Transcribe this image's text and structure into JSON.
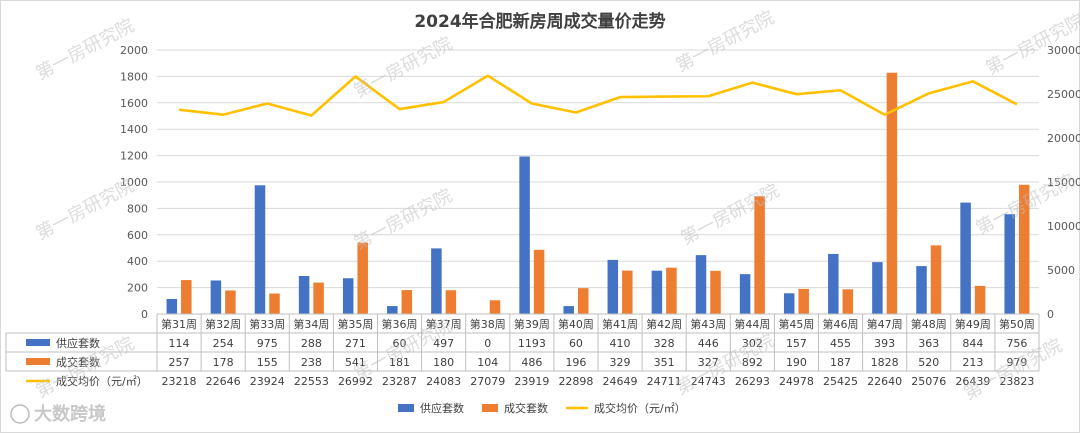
{
  "chart_data": {
    "type": "bar",
    "title": "2024年合肥新房周成交量价走势",
    "categories": [
      "第31周",
      "第32周",
      "第33周",
      "第34周",
      "第35周",
      "第36周",
      "第37周",
      "第38周",
      "第39周",
      "第40周",
      "第41周",
      "第42周",
      "第43周",
      "第44周",
      "第45周",
      "第46周",
      "第47周",
      "第48周",
      "第49周",
      "第50周"
    ],
    "series": [
      {
        "name": "供应套数",
        "type": "bar",
        "axis": "left",
        "color": "#4472c4",
        "values": [
          114,
          254,
          975,
          288,
          271,
          60,
          497,
          0,
          1193,
          60,
          410,
          328,
          446,
          302,
          157,
          455,
          393,
          363,
          844,
          756
        ]
      },
      {
        "name": "成交套数",
        "type": "bar",
        "axis": "left",
        "color": "#ed7d31",
        "values": [
          257,
          178,
          155,
          238,
          541,
          181,
          180,
          104,
          486,
          196,
          329,
          351,
          327,
          892,
          190,
          187,
          1828,
          520,
          213,
          979
        ]
      },
      {
        "name": "成交均价（元/㎡）",
        "type": "line",
        "axis": "right",
        "color": "#ffc000",
        "values": [
          23218,
          22646,
          23924,
          22553,
          26992,
          23287,
          24083,
          27079,
          23919,
          22898,
          24649,
          24711,
          24743,
          26293,
          24978,
          25425,
          22640,
          25076,
          26439,
          23823
        ]
      }
    ],
    "y_left": {
      "min": 0,
      "max": 2000,
      "ticks": [
        0,
        200,
        400,
        600,
        800,
        1000,
        1200,
        1400,
        1600,
        1800,
        2000
      ]
    },
    "y_right": {
      "min": 0,
      "max": 30000,
      "ticks": [
        0,
        5000,
        10000,
        15000,
        20000,
        25000,
        30000
      ]
    },
    "grid": true,
    "legend": "bottom",
    "data_table": true,
    "watermark": "第一房研究院",
    "brand_label": "大数跨境"
  }
}
